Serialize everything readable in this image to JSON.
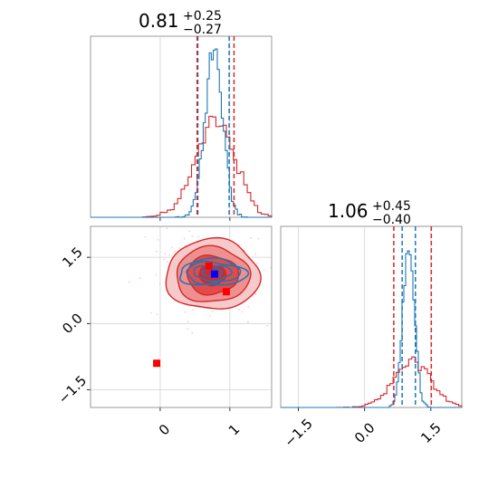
{
  "chart_data": [
    {
      "type": "histogram",
      "panel": "top-left",
      "title": {
        "value": "0.81",
        "plus": "+0.25",
        "minus": "−0.27"
      },
      "xlim": [
        -1.0,
        1.6
      ],
      "x_tick_values": [
        0,
        1
      ],
      "grid": true,
      "series": [
        {
          "color": "#1f77b4",
          "quantile_lines": [
            0.54,
            0.99
          ]
        },
        {
          "color": "#d62728",
          "quantile_lines": [
            0.53,
            1.06
          ]
        }
      ]
    },
    {
      "type": "contour",
      "panel": "bottom-left",
      "xlim": [
        -1.0,
        1.6
      ],
      "ylim": [
        -1.9,
        2.2
      ],
      "x_ticks": [
        {
          "value": 0,
          "label": "0"
        },
        {
          "value": 1,
          "label": "1"
        }
      ],
      "y_ticks": [
        {
          "value": 1.5,
          "label": "1.5"
        },
        {
          "value": 0.0,
          "label": "0.0"
        },
        {
          "value": -1.5,
          "label": "−1.5"
        }
      ],
      "grid": true,
      "series": [
        {
          "color": "#d62728",
          "center": [
            0.75,
            1.1
          ],
          "spread": [
            0.32,
            0.38
          ],
          "filled": true
        },
        {
          "color": "#1f77b4",
          "center": [
            0.75,
            1.15
          ],
          "spread": [
            0.32,
            0.2
          ],
          "filled": false
        }
      ],
      "markers": [
        {
          "color": "#ff0000",
          "x": -0.05,
          "y": -0.9
        },
        {
          "color": "#ff0000",
          "x": 0.7,
          "y": 1.3
        },
        {
          "color": "#ff0000",
          "x": 0.95,
          "y": 0.72
        },
        {
          "color": "#0000ff",
          "x": 0.78,
          "y": 1.12
        }
      ]
    },
    {
      "type": "histogram",
      "panel": "bottom-right",
      "title": {
        "value": "1.06",
        "plus": "+0.45",
        "minus": "−0.40"
      },
      "xlim": [
        -1.9,
        2.2
      ],
      "x_ticks": [
        {
          "value": -1.5,
          "label": "−1.5"
        },
        {
          "value": 0.0,
          "label": "0.0"
        },
        {
          "value": 1.5,
          "label": "1.5"
        }
      ],
      "grid": true,
      "series": [
        {
          "color": "#1f77b4",
          "quantile_lines": [
            0.85,
            1.15
          ]
        },
        {
          "color": "#d62728",
          "quantile_lines": [
            0.66,
            1.51
          ]
        }
      ]
    }
  ]
}
